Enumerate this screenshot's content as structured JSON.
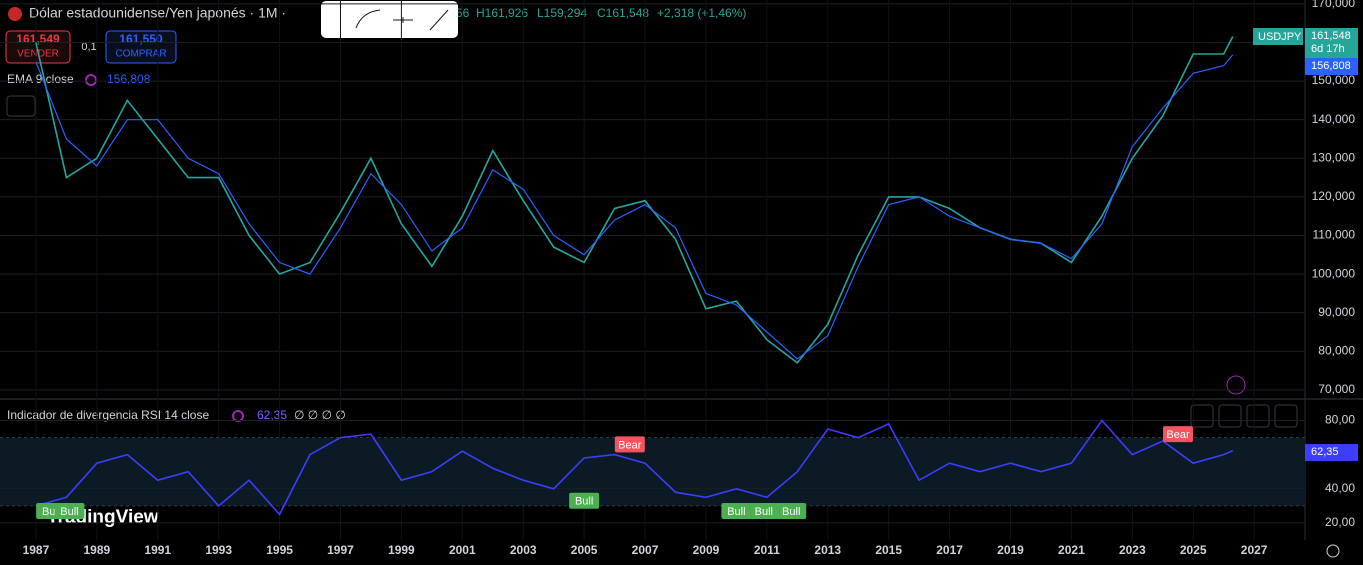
{
  "ui": {
    "symbol_title": "Dólar estadounidense/Yen japonés · 1M ·",
    "open_partial": "56",
    "high": "H161,926",
    "low": "L159,294",
    "close": "C161,548",
    "change": "+2,318 (+1,46%)",
    "sell_price": "161,549",
    "sell_label": "VENDER",
    "spread": "0,1",
    "buy_price": "161,550",
    "buy_label": "COMPRAR",
    "ema_legend": "EMA 9 close",
    "ema_value": "156,808",
    "price_tag_symbol": "USDJPY",
    "price_tag_value": "161,548",
    "price_tag_time": "6d 17h",
    "ema_tag_value": "156,808",
    "rsi_legend": "Indicador de divergencia RSI 14 close",
    "rsi_value": "62,35",
    "rsi_extra": "∅ ∅ ∅ ∅",
    "rsi_tag_value": "62,35",
    "logo": "TradingView"
  },
  "chart_data": [
    {
      "type": "line",
      "x": [
        1987,
        1988,
        1989,
        1990,
        1991,
        1992,
        1993,
        1994,
        1995,
        1996,
        1997,
        1998,
        1999,
        2000,
        2001,
        2002,
        2003,
        2004,
        2005,
        2006,
        2007,
        2008,
        2009,
        2010,
        2011,
        2012,
        2013,
        2014,
        2015,
        2016,
        2017,
        2018,
        2019,
        2020,
        2021,
        2022,
        2023,
        2024,
        2025,
        2026,
        2026.3
      ],
      "series": [
        {
          "name": "USDJPY",
          "color": "#26a69a",
          "values": [
            160,
            125,
            130,
            145,
            135,
            125,
            125,
            110,
            100,
            103,
            116,
            130,
            113,
            102,
            115,
            132,
            119,
            107,
            103,
            117,
            119,
            109,
            91,
            93,
            83,
            77,
            87,
            105,
            120,
            120,
            117,
            112,
            109,
            108,
            103,
            115,
            130,
            141,
            157,
            157,
            161.548
          ]
        },
        {
          "name": "EMA 9 close",
          "color": "#2962ff",
          "values": [
            155,
            135,
            128,
            140,
            140,
            130,
            126,
            113,
            103,
            100,
            112,
            126,
            118,
            106,
            112,
            127,
            122,
            110,
            105,
            114,
            118,
            112,
            95,
            92,
            85,
            78,
            84,
            102,
            118,
            120,
            115,
            112,
            109,
            108,
            104,
            113,
            133,
            143,
            152,
            154,
            156.808
          ]
        }
      ],
      "xlim": [
        1985.82,
        2028.67
      ],
      "xticks": [
        1987,
        1989,
        1991,
        1993,
        1995,
        1997,
        1999,
        2001,
        2003,
        2005,
        2007,
        2009,
        2011,
        2013,
        2015,
        2017,
        2019,
        2021,
        2023,
        2025,
        2027
      ],
      "ylim": [
        67.9,
        171
      ],
      "yticks": [
        {
          "value": 70,
          "label": "70,000"
        },
        {
          "value": 80,
          "label": "80,000"
        },
        {
          "value": 90,
          "label": "90,000"
        },
        {
          "value": 100,
          "label": "100,000"
        },
        {
          "value": 110,
          "label": "110,000"
        },
        {
          "value": 120,
          "label": "120,000"
        },
        {
          "value": 130,
          "label": "130,000"
        },
        {
          "value": 140,
          "label": "140,000"
        },
        {
          "value": 150,
          "label": "150,000"
        },
        {
          "value": 160,
          "label": "160,000"
        },
        {
          "value": 170,
          "label": "170,000"
        }
      ]
    },
    {
      "type": "line",
      "x": [
        1987,
        1988,
        1989,
        1990,
        1991,
        1992,
        1993,
        1994,
        1995,
        1996,
        1997,
        1998,
        1999,
        2000,
        2001,
        2002,
        2003,
        2004,
        2005,
        2006,
        2007,
        2008,
        2009,
        2010,
        2011,
        2012,
        2013,
        2014,
        2015,
        2016,
        2017,
        2018,
        2019,
        2020,
        2021,
        2022,
        2023,
        2024,
        2025,
        2026,
        2026.3
      ],
      "series": [
        {
          "name": "RSI",
          "color": "#3d3dff",
          "values": [
            30,
            35,
            55,
            60,
            45,
            50,
            30,
            45,
            25,
            60,
            70,
            72,
            45,
            50,
            62,
            52,
            45,
            40,
            58,
            60,
            55,
            38,
            35,
            40,
            35,
            50,
            75,
            70,
            78,
            45,
            55,
            50,
            55,
            50,
            55,
            80,
            60,
            68,
            55,
            60,
            62.35
          ]
        }
      ],
      "xlim": [
        1985.82,
        2028.67
      ],
      "ylim": [
        10,
        92
      ],
      "yticks": [
        {
          "value": 20,
          "label": "20,00"
        },
        {
          "value": 40,
          "label": "40,00"
        },
        {
          "value": 80,
          "label": "80,00"
        }
      ],
      "bands": [
        30,
        70
      ],
      "annotations": [
        {
          "text": "Bull",
          "x": 1987.5,
          "y": 27
        },
        {
          "text": "Bull",
          "x": 1988.1,
          "y": 27
        },
        {
          "text": "Bull",
          "x": 2005,
          "y": 33
        },
        {
          "text": "Bear",
          "x": 2006.5,
          "y": 66
        },
        {
          "text": "Bull",
          "x": 2010,
          "y": 27
        },
        {
          "text": "Bull",
          "x": 2010.9,
          "y": 27
        },
        {
          "text": "Bull",
          "x": 2011.8,
          "y": 27
        },
        {
          "text": "Bear",
          "x": 2024.5,
          "y": 72
        }
      ]
    }
  ]
}
